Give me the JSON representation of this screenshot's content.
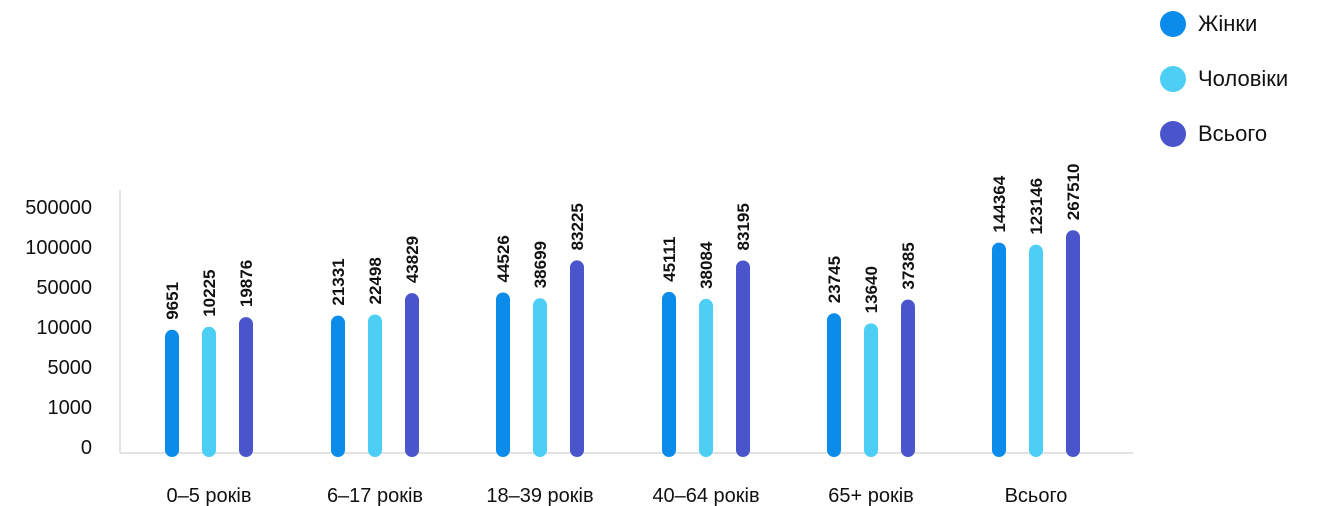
{
  "chart_data": {
    "type": "bar",
    "categories": [
      "0–5 років",
      "6–17 років",
      "18–39 років",
      "40–64 років",
      "65+ років",
      "Всього"
    ],
    "series": [
      {
        "name": "Жінки",
        "color": "#0B8CEB",
        "values": [
          9651,
          21331,
          44526,
          45111,
          23745,
          144364
        ]
      },
      {
        "name": "Чоловіки",
        "color": "#4DCFF5",
        "values": [
          10225,
          22498,
          38699,
          38084,
          13640,
          123146
        ]
      },
      {
        "name": "Всього",
        "color": "#4A55CC",
        "values": [
          19876,
          43829,
          83225,
          83195,
          37385,
          267510
        ]
      }
    ],
    "y_ticks": [
      "0",
      "1000",
      "5000",
      "10000",
      "50000",
      "100000",
      "500000"
    ],
    "y_tick_values": [
      0,
      1000,
      5000,
      10000,
      50000,
      100000,
      500000
    ],
    "ylim": [
      0,
      500000
    ],
    "y_scale": "piecewise (evenly spaced ticks)",
    "grid": false,
    "legend": "top-right",
    "data_labels": true
  }
}
